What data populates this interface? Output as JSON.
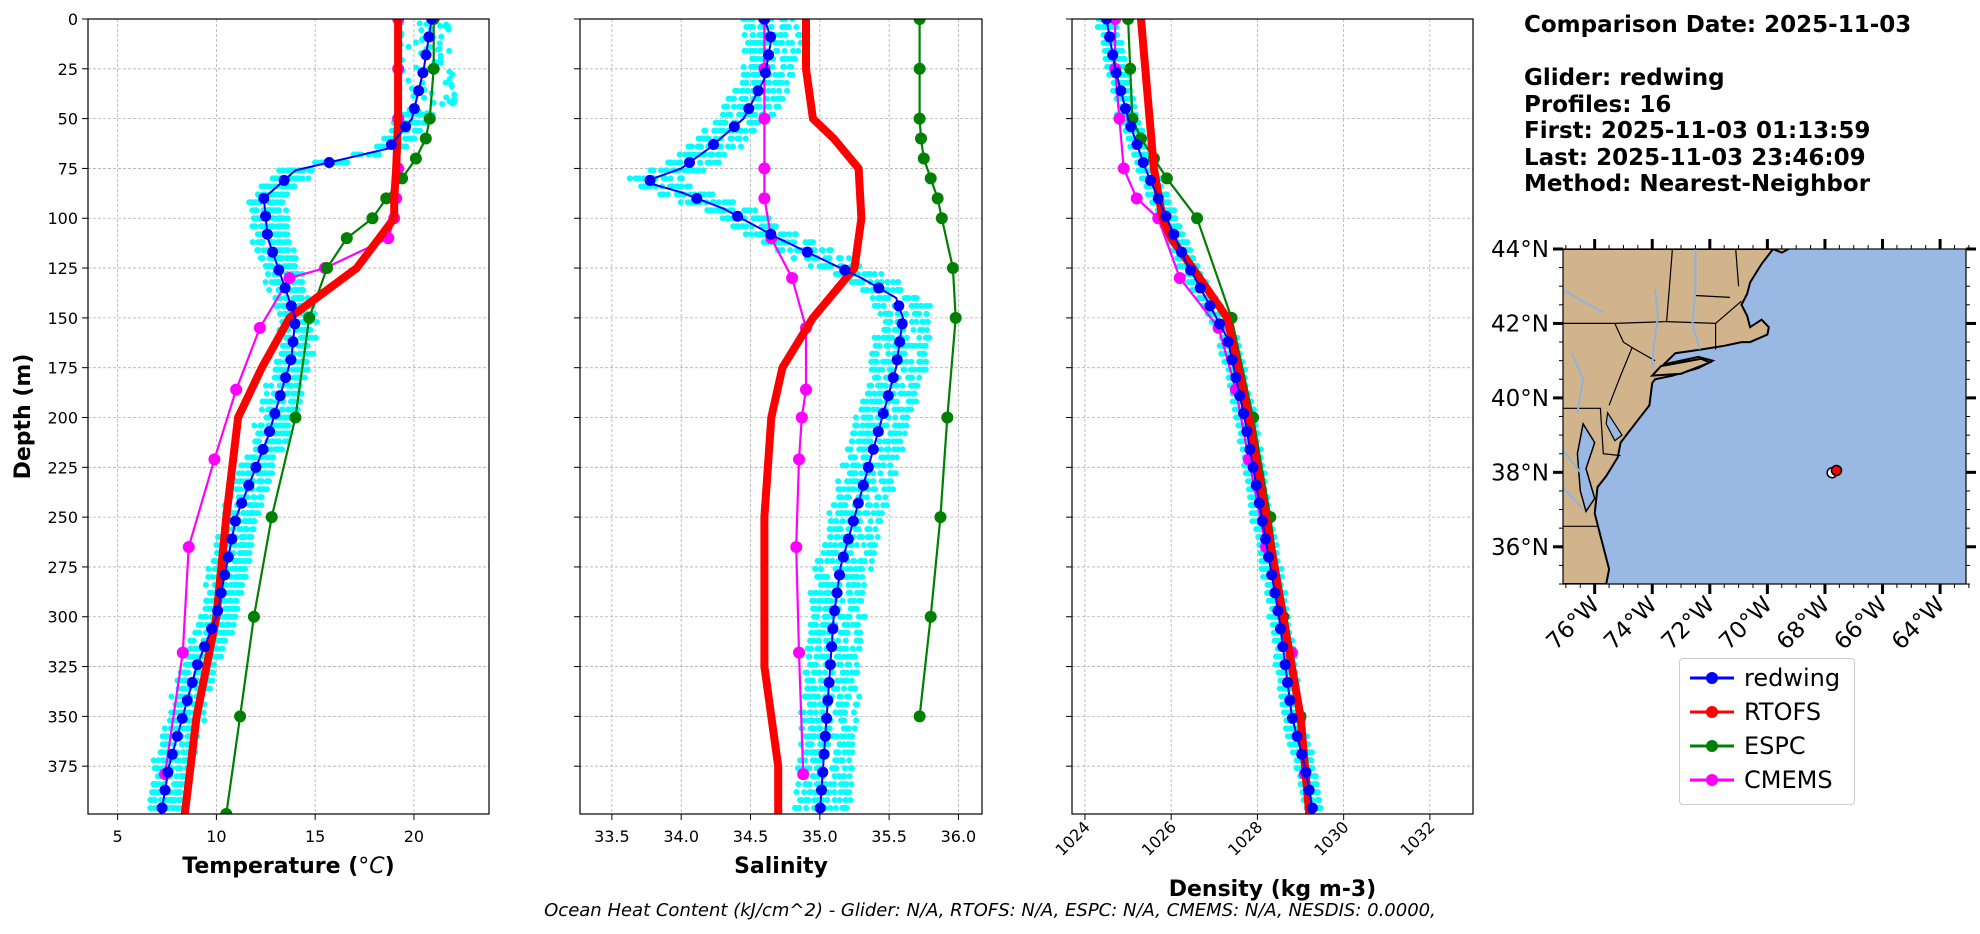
{
  "info": {
    "comparison_date": "Comparison Date: 2025-11-03",
    "glider": "Glider: redwing",
    "profiles": "Profiles: 16",
    "first": "First: 2025-11-03 01:13:59",
    "last": "Last: 2025-11-03 23:46:09",
    "method": "Method: Nearest-Neighbor"
  },
  "footer": "Ocean Heat Content (kJ/cm^2) - Glider: N/A,  RTOFS: N/A,  ESPC: N/A,  CMEMS: N/A,  NESDIS: 0.0000,",
  "colors": {
    "glider": "#0000ff",
    "glider_scatter": "#00ffff",
    "rtofs": "#ff0000",
    "espc": "#008000",
    "cmems": "#ff00ff",
    "land": "#d2b48c",
    "ocean": "#99b8e3"
  },
  "legend": [
    {
      "name": "redwing",
      "color": "#0000ff"
    },
    {
      "name": "RTOFS",
      "color": "#ff0000"
    },
    {
      "name": "ESPC",
      "color": "#008000"
    },
    {
      "name": "CMEMS",
      "color": "#ff00ff"
    }
  ],
  "chart_data": [
    {
      "type": "line",
      "xlabel": "Temperature (°C)",
      "ylabel": "Depth (m)",
      "xlim": [
        3.5,
        23.8
      ],
      "ylim": [
        399,
        0
      ],
      "xticks": [
        5,
        10,
        15,
        20
      ],
      "yticks": [
        0,
        25,
        50,
        75,
        100,
        125,
        150,
        175,
        200,
        225,
        250,
        275,
        300,
        325,
        350,
        375
      ],
      "grid": true,
      "series": [
        {
          "name": "redwing",
          "x": [
            20.9,
            20.5,
            19.9,
            18.7,
            14.0,
            12.4,
            12.6,
            13.3,
            14.0,
            13.8,
            13.2,
            12.6,
            11.8,
            11.0,
            10.5,
            10.0,
            9.0,
            8.3,
            7.6,
            7.2
          ],
          "y": [
            0,
            25,
            50,
            65,
            76,
            90,
            110,
            130,
            150,
            170,
            190,
            210,
            230,
            250,
            275,
            300,
            325,
            350,
            375,
            399
          ]
        },
        {
          "name": "RTOFS",
          "x": [
            19.2,
            19.2,
            19.2,
            19.1,
            19.0,
            19.0,
            17.1,
            13.7,
            12.3,
            11.1,
            10.5,
            10.0,
            9.5,
            9.0,
            8.4
          ],
          "y": [
            0,
            25,
            50,
            75,
            90,
            100,
            125,
            150,
            175,
            200,
            250,
            300,
            325,
            350,
            399
          ]
        },
        {
          "name": "ESPC",
          "x": [
            21.0,
            21.0,
            20.8,
            20.6,
            20.1,
            19.4,
            18.6,
            17.9,
            16.6,
            15.6,
            14.7,
            14.0,
            12.8,
            11.9,
            11.2,
            10.5
          ],
          "y": [
            0,
            25,
            50,
            60,
            70,
            80,
            90,
            100,
            110,
            125,
            150,
            200,
            250,
            300,
            350,
            399
          ]
        },
        {
          "name": "CMEMS",
          "x": [
            19.2,
            19.2,
            19.2,
            19.2,
            19.1,
            19.0,
            18.7,
            15.5,
            13.7,
            12.2,
            11.0,
            9.9,
            8.6,
            8.3,
            7.4
          ],
          "y": [
            0,
            25,
            50,
            75,
            90,
            100,
            110,
            125,
            130,
            155,
            186,
            221,
            265,
            318,
            379
          ]
        }
      ]
    },
    {
      "type": "line",
      "xlabel": "Salinity",
      "ylabel": "",
      "xlim": [
        33.27,
        36.17
      ],
      "ylim": [
        399,
        0
      ],
      "xticks": [
        33.5,
        34.0,
        34.5,
        35.0,
        35.5,
        36.0
      ],
      "grid": true,
      "series": [
        {
          "name": "redwing",
          "x": [
            34.6,
            34.65,
            34.6,
            34.45,
            34.2,
            34.0,
            33.8,
            33.75,
            34.0,
            34.3,
            34.7,
            35.0,
            35.3,
            35.55,
            35.6,
            35.55,
            35.45,
            35.35,
            35.25,
            35.15,
            35.1,
            35.05,
            35.0
          ],
          "y": [
            0,
            10,
            30,
            50,
            65,
            75,
            80,
            82,
            87,
            95,
            110,
            120,
            130,
            140,
            150,
            175,
            200,
            225,
            250,
            275,
            300,
            350,
            399
          ]
        },
        {
          "name": "RTOFS",
          "x": [
            34.9,
            34.9,
            34.95,
            35.1,
            35.28,
            35.3,
            35.25,
            34.95,
            34.73,
            34.65,
            34.6,
            34.6,
            34.6,
            34.65,
            34.7,
            34.7,
            34.7
          ],
          "y": [
            0,
            25,
            50,
            60,
            75,
            100,
            125,
            150,
            175,
            200,
            250,
            300,
            325,
            350,
            375,
            390,
            399
          ]
        },
        {
          "name": "ESPC",
          "x": [
            35.72,
            35.72,
            35.72,
            35.73,
            35.75,
            35.8,
            35.85,
            35.88,
            35.96,
            35.98,
            35.92,
            35.87,
            35.8,
            35.72
          ],
          "y": [
            0,
            25,
            50,
            60,
            70,
            80,
            90,
            100,
            125,
            150,
            200,
            250,
            300,
            350
          ]
        },
        {
          "name": "CMEMS",
          "x": [
            34.6,
            34.6,
            34.6,
            34.6,
            34.6,
            34.65,
            34.8,
            34.9,
            34.9,
            34.87,
            34.85,
            34.83,
            34.85,
            34.88
          ],
          "y": [
            0,
            25,
            50,
            75,
            90,
            110,
            130,
            155,
            186,
            200,
            221,
            265,
            318,
            379
          ]
        }
      ]
    },
    {
      "type": "line",
      "xlabel": "Density (kg m-3)",
      "ylabel": "",
      "xlim": [
        1023.7,
        1033.0
      ],
      "ylim": [
        399,
        0
      ],
      "xticks": [
        1024,
        1026,
        1028,
        1030,
        1032
      ],
      "grid": true,
      "series": [
        {
          "name": "redwing",
          "x": [
            1024.5,
            1024.7,
            1025.0,
            1025.4,
            1025.9,
            1026.3,
            1026.8,
            1027.3,
            1027.7,
            1028.1,
            1028.5,
            1028.8,
            1029.1,
            1029.3
          ],
          "y": [
            0,
            25,
            50,
            75,
            100,
            120,
            140,
            160,
            200,
            250,
            300,
            350,
            375,
            399
          ]
        },
        {
          "name": "RTOFS",
          "x": [
            1025.3,
            1025.4,
            1025.5,
            1025.6,
            1025.8,
            1026.0,
            1026.5,
            1027.3,
            1027.8,
            1028.2,
            1028.6,
            1029.0,
            1029.2
          ],
          "y": [
            0,
            25,
            50,
            75,
            100,
            110,
            125,
            150,
            200,
            250,
            300,
            350,
            399
          ]
        },
        {
          "name": "ESPC",
          "x": [
            1025.0,
            1025.05,
            1025.1,
            1025.3,
            1025.6,
            1025.9,
            1026.6,
            1027.4,
            1027.9,
            1028.3,
            1028.6,
            1029.0
          ],
          "y": [
            0,
            25,
            50,
            60,
            70,
            80,
            100,
            150,
            200,
            250,
            300,
            350
          ]
        },
        {
          "name": "CMEMS",
          "x": [
            1024.7,
            1024.7,
            1024.8,
            1024.9,
            1025.2,
            1025.7,
            1026.2,
            1027.1,
            1027.5,
            1027.8,
            1028.2,
            1028.8,
            1029.1
          ],
          "y": [
            0,
            25,
            50,
            75,
            90,
            100,
            130,
            155,
            186,
            221,
            265,
            318,
            379
          ]
        }
      ]
    },
    {
      "type": "map",
      "lon_labels": [
        "76°W",
        "74°W",
        "72°W",
        "70°W",
        "68°W",
        "66°W",
        "64°W"
      ],
      "lat_labels": [
        "44°N",
        "42°N",
        "40°N",
        "38°N",
        "36°N"
      ],
      "glider_location": {
        "lon": -67.6,
        "lat": 38.05
      }
    }
  ]
}
